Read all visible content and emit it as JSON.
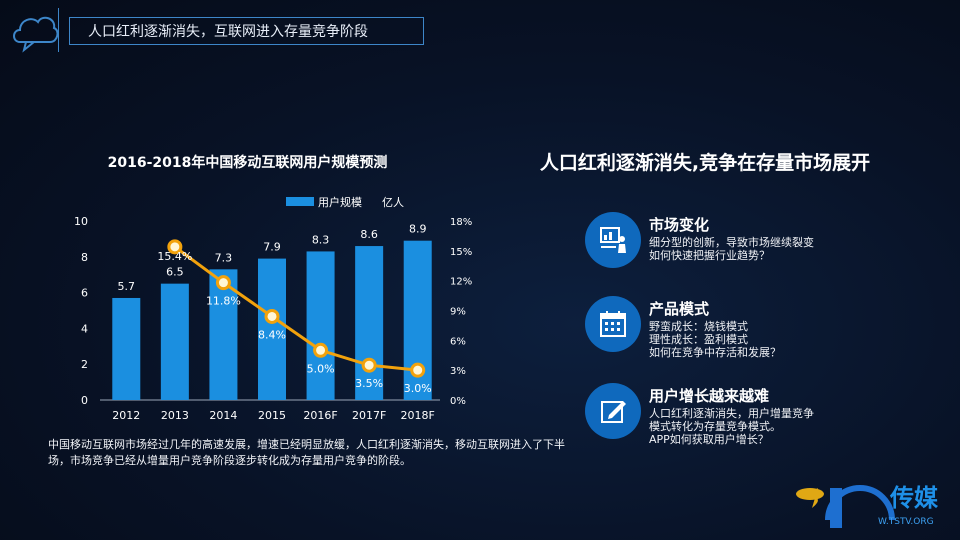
{
  "header": {
    "title": "人口红利逐渐消失，互联网进入存量竞争阶段"
  },
  "chart_data": {
    "type": "bar",
    "title": "2016-2018年中国移动互联网用户规模预测",
    "categories": [
      "2012",
      "2013",
      "2014",
      "2015",
      "2016F",
      "2017F",
      "2018F"
    ],
    "series": [
      {
        "name": "用户规模",
        "kind": "bar",
        "values": [
          5.7,
          6.5,
          7.3,
          7.9,
          8.3,
          8.6,
          8.9
        ],
        "labels": [
          "5.7",
          "6.5",
          "7.3",
          "7.9",
          "8.3",
          "8.6",
          "8.9"
        ]
      },
      {
        "kind": "line",
        "axis": "right",
        "values": [
          null,
          15.4,
          11.8,
          8.4,
          5.0,
          3.5,
          3.0
        ],
        "labels": [
          "",
          "15.4%",
          "11.8%",
          "8.4%",
          "5.0%",
          "3.5%",
          "3.0%"
        ]
      }
    ],
    "legend_label": "用户规模",
    "legend_unit": "亿人",
    "legend_position": "top-right",
    "ylim": [
      0,
      10
    ],
    "yticks": [
      "0",
      "2",
      "4",
      "6",
      "8",
      "10"
    ],
    "y2lim": [
      0,
      18
    ],
    "y2ticks": [
      "0%",
      "3%",
      "6%",
      "9%",
      "12%",
      "15%",
      "18%"
    ],
    "colors": {
      "bar": "#1b8fe0",
      "line": "#f2a20c",
      "marker_fill": "#fff6d6"
    }
  },
  "description": "中国移动互联网市场经过几年的高速发展，增速已经明显放缓，人口红利逐渐消失，移动互联网进入了下半场，市场竞争已经从增量用户竞争阶段逐步转化成为存量用户竞争的阶段。",
  "right_panel": {
    "title": "人口红利逐渐消失,竞争在存量市场展开",
    "features": [
      {
        "icon": "presentation-icon",
        "title": "市场变化",
        "lines": [
          "细分型的创新，导致市场继续裂变",
          "如何快速把握行业趋势？"
        ]
      },
      {
        "icon": "calendar-icon",
        "title": "产品模式",
        "lines": [
          "野蛮成长：烧钱模式",
          "理性成长：盈利模式",
          "如何在竞争中存活和发展？"
        ]
      },
      {
        "icon": "edit-icon",
        "title": "用户增长越来越难",
        "lines": [
          "人口红利逐渐消失，用户增量竞争",
          "模式转化为存量竞争模式。",
          "APP如何获取用户增长？"
        ]
      }
    ]
  },
  "logo": {
    "text": "传媒",
    "subtext": "W.TSTV.ORG"
  }
}
